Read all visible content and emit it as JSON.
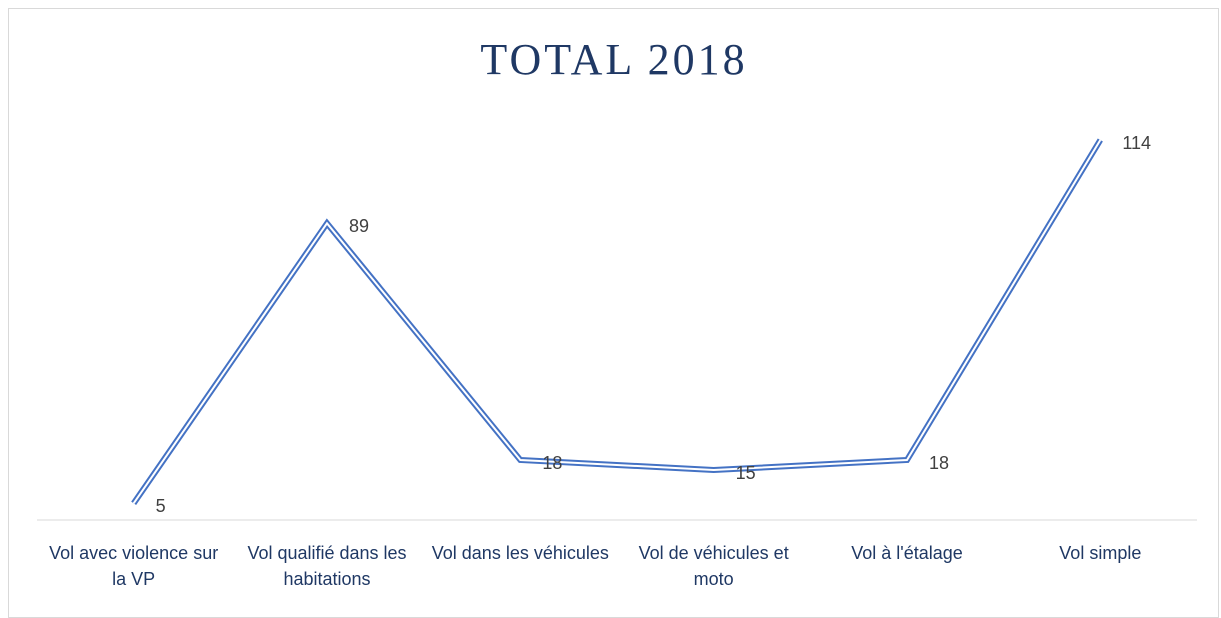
{
  "chart_data": {
    "type": "line",
    "title": "TOTAL 2018",
    "categories": [
      "Vol avec violence sur la VP",
      "Vol qualifié dans les habitations",
      "Vol dans les véhicules",
      "Vol de véhicules et moto",
      "Vol à l'étalage",
      "Vol simple"
    ],
    "values": [
      5,
      89,
      18,
      15,
      18,
      114
    ],
    "color": "#4472c4",
    "ylim": [
      0,
      120
    ],
    "data_labels": true
  }
}
